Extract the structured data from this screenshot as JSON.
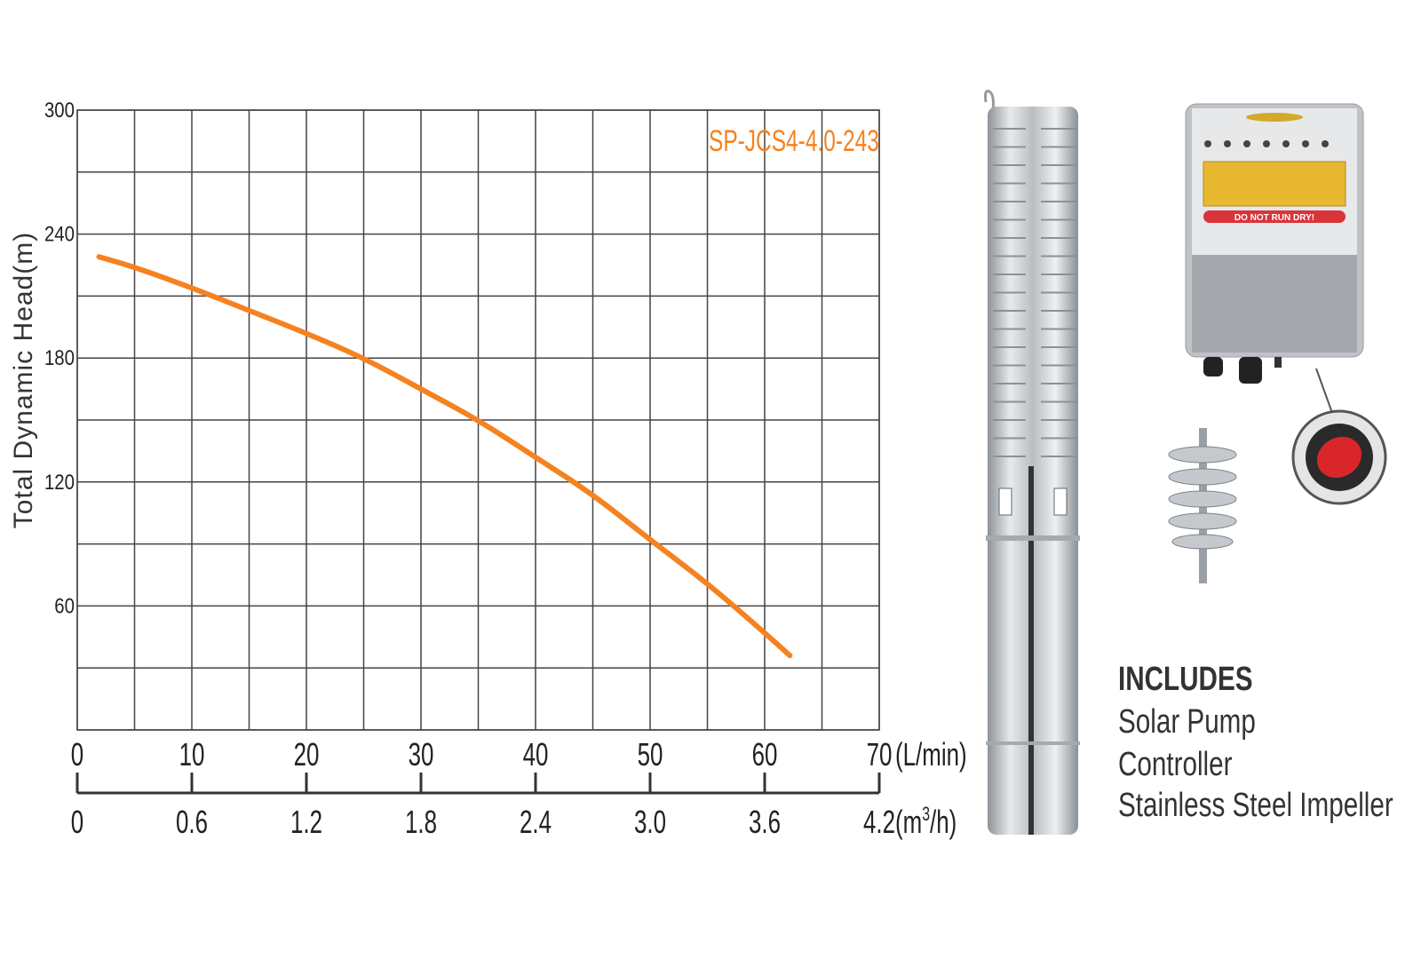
{
  "chart_data": {
    "type": "line",
    "title": "",
    "ylabel": "Total Dynamic Head(m)",
    "xlabel_primary_unit": "(L/min)",
    "xlabel_secondary_unit_base": "(m",
    "xlabel_secondary_unit_sup": "3",
    "xlabel_secondary_unit_tail": "/h)",
    "ylim": [
      0,
      300
    ],
    "xlim": [
      0,
      70
    ],
    "grid": true,
    "yticks": [
      "60",
      "120",
      "180",
      "240",
      "300"
    ],
    "xticks_primary": [
      "0",
      "10",
      "20",
      "30",
      "40",
      "50",
      "60",
      "70"
    ],
    "xticks_secondary": [
      "0",
      "0.6",
      "1.2",
      "1.8",
      "2.4",
      "3.0",
      "3.6",
      "4.2"
    ],
    "series": [
      {
        "name": "SP-JCS4-4.0-243",
        "color": "#f58220",
        "x": [
          1.9,
          5,
          10,
          15,
          20,
          25,
          30,
          35,
          40,
          45,
          50,
          55,
          60,
          62.2
        ],
        "y": [
          229,
          224,
          214,
          203,
          192,
          180,
          165,
          150,
          132,
          114,
          92,
          71,
          47,
          36
        ]
      }
    ]
  },
  "product": {
    "controller_warning": "DO NOT RUN DRY!",
    "includes_title": "INCLUDES",
    "includes_items": [
      "Solar Pump",
      "Controller",
      "Stainless Steel Impeller"
    ]
  }
}
